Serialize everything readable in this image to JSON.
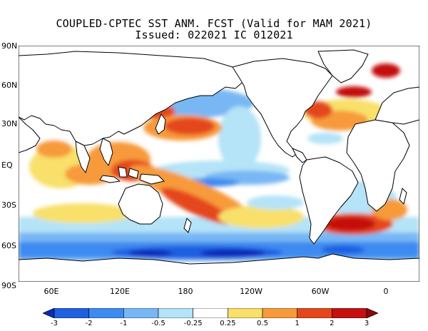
{
  "title": {
    "line1": "COUPLED-CPTEC SST ANM. FCST  (Valid for MAM 2021)",
    "line2": "Issued:  022021 IC 012021"
  },
  "axes": {
    "lat_labels": [
      "90N",
      "60N",
      "30N",
      "EQ",
      "30S",
      "60S",
      "90S"
    ],
    "lon_labels": [
      "60E",
      "120E",
      "180",
      "120W",
      "60W",
      "0"
    ]
  },
  "colorbar": {
    "labels": [
      "-3",
      "-2",
      "-1",
      "-0.5",
      "-0.25",
      "0.25",
      "0.5",
      "1",
      "2",
      "3"
    ],
    "colors": [
      "#0a2bb8",
      "#1f5fe0",
      "#3d8af0",
      "#78b7f4",
      "#b5e3f7",
      "#ffffff",
      "#f8e06a",
      "#f79a3a",
      "#e5471c",
      "#c51010",
      "#8a0a0a"
    ]
  },
  "colors": {
    "land": "#ffffff",
    "coast": "#000000"
  }
}
